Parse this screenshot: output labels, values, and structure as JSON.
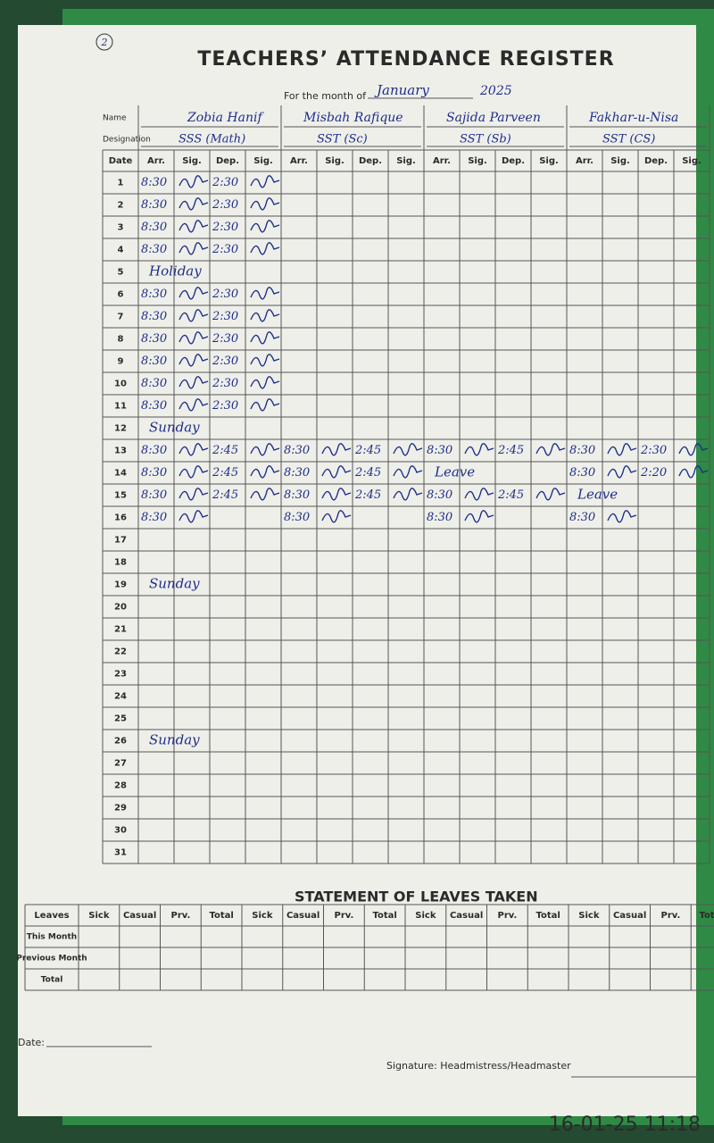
{
  "header": {
    "number": "2",
    "title": "TEACHERS’ ATTENDANCE REGISTER",
    "month_label": "For the month of",
    "month": "January",
    "year": "2025",
    "name_label": "Name",
    "designation_label": "Designation",
    "date_label": "Date",
    "columns": [
      "Arr.",
      "Sig.",
      "Dep.",
      "Sig."
    ]
  },
  "dates": [
    "1",
    "2",
    "3",
    "4",
    "5",
    "6",
    "7",
    "8",
    "9",
    "10",
    "11",
    "12",
    "13",
    "14",
    "15",
    "16",
    "17",
    "18",
    "19",
    "20",
    "21",
    "22",
    "23",
    "24",
    "25",
    "26",
    "27",
    "28",
    "29",
    "30",
    "31"
  ],
  "teachers": [
    {
      "name": "Zobia Hanif",
      "designation": "SSS (Math)",
      "days": [
        {
          "arr": "8:30",
          "dep": "2:30"
        },
        {
          "arr": "8:30",
          "dep": "2:30"
        },
        {
          "arr": "8:30",
          "dep": "2:30"
        },
        {
          "arr": "8:30",
          "dep": "2:30"
        },
        {
          "note": "Holiday"
        },
        {
          "arr": "8:30",
          "dep": "2:30"
        },
        {
          "arr": "8:30",
          "dep": "2:30"
        },
        {
          "arr": "8:30",
          "dep": "2:30"
        },
        {
          "arr": "8:30",
          "dep": "2:30"
        },
        {
          "arr": "8:30",
          "dep": "2:30"
        },
        {
          "arr": "8:30",
          "dep": "2:30"
        },
        {
          "note": "Sunday"
        },
        {
          "arr": "8:30",
          "dep": "2:45"
        },
        {
          "arr": "8:30",
          "dep": "2:45"
        },
        {
          "arr": "8:30",
          "dep": "2:45"
        },
        {
          "arr": "8:30"
        },
        null,
        null,
        {
          "note": "Sunday"
        },
        null,
        null,
        null,
        null,
        null,
        null,
        {
          "note": "Sunday"
        },
        null,
        null,
        null,
        null,
        null
      ]
    },
    {
      "name": "Misbah Rafique",
      "designation": "SST (Sc)",
      "days": [
        null,
        null,
        null,
        null,
        null,
        null,
        null,
        null,
        null,
        null,
        null,
        null,
        {
          "arr": "8:30",
          "dep": "2:45"
        },
        {
          "arr": "8:30",
          "dep": "2:45"
        },
        {
          "arr": "8:30",
          "dep": "2:45"
        },
        {
          "arr": "8:30"
        },
        null,
        null,
        null,
        null,
        null,
        null,
        null,
        null,
        null,
        null,
        null,
        null,
        null,
        null,
        null
      ]
    },
    {
      "name": "Sajida Parveen",
      "designation": "SST (Sb)",
      "days": [
        null,
        null,
        null,
        null,
        null,
        null,
        null,
        null,
        null,
        null,
        null,
        null,
        {
          "arr": "8:30",
          "dep": "2:45"
        },
        {
          "note": "Leave"
        },
        {
          "arr": "8:30",
          "dep": "2:45"
        },
        {
          "arr": "8:30"
        },
        null,
        null,
        null,
        null,
        null,
        null,
        null,
        null,
        null,
        null,
        null,
        null,
        null,
        null,
        null
      ]
    },
    {
      "name": "Fakhar-u-Nisa",
      "designation": "SST (CS)",
      "days": [
        null,
        null,
        null,
        null,
        null,
        null,
        null,
        null,
        null,
        null,
        null,
        null,
        {
          "arr": "8:30",
          "dep": "2:30"
        },
        {
          "arr": "8:30",
          "dep": "2:20"
        },
        {
          "note": "Leave"
        },
        {
          "arr": "8:30"
        },
        null,
        null,
        null,
        null,
        null,
        null,
        null,
        null,
        null,
        null,
        null,
        null,
        null,
        null,
        null
      ]
    }
  ],
  "leaves": {
    "title": "STATEMENT OF LEAVES TAKEN",
    "row_header": "Leaves",
    "columns": [
      "Sick",
      "Casual",
      "Prv.",
      "Total"
    ],
    "rows": [
      "This Month",
      "Previous Month",
      "Total"
    ]
  },
  "footer": {
    "date_label": "Date:",
    "signature_label": "Signature: Headmistress/Headmaster"
  },
  "timestamp": "16-01-25 11:18"
}
